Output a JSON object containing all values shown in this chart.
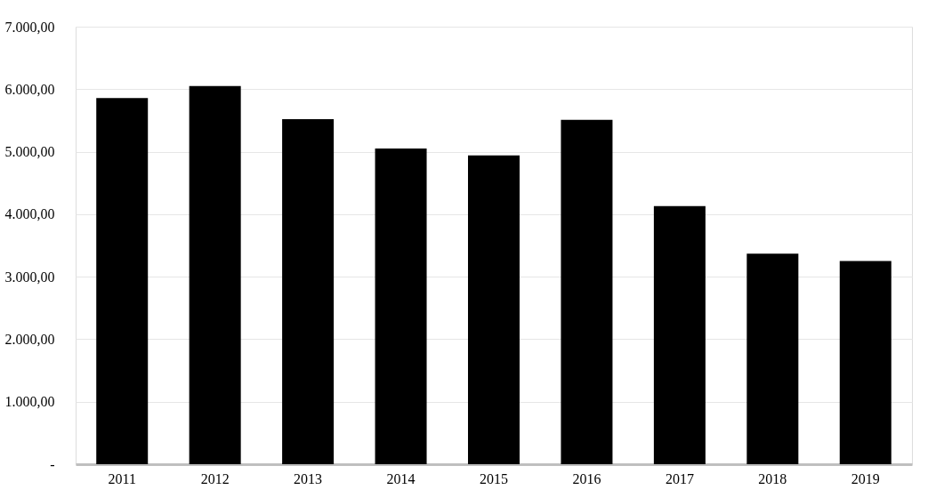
{
  "chart_data": {
    "type": "bar",
    "categories": [
      "2011",
      "2012",
      "2013",
      "2014",
      "2015",
      "2016",
      "2017",
      "2018",
      "2019"
    ],
    "values": [
      5860,
      6050,
      5520,
      5050,
      4940,
      5510,
      4130,
      3370,
      3250
    ],
    "color": "#000000",
    "ylim": [
      0,
      7000
    ],
    "yticks": [
      {
        "value": 0,
        "label": "-"
      },
      {
        "value": 1000,
        "label": "1.000,00"
      },
      {
        "value": 2000,
        "label": "2.000,00"
      },
      {
        "value": 3000,
        "label": "3.000,00"
      },
      {
        "value": 4000,
        "label": "4.000,00"
      },
      {
        "value": 5000,
        "label": "5.000,00"
      },
      {
        "value": 6000,
        "label": "6.000,00"
      },
      {
        "value": 7000,
        "label": "7.000,00"
      }
    ],
    "grid": "y",
    "legend": false
  }
}
